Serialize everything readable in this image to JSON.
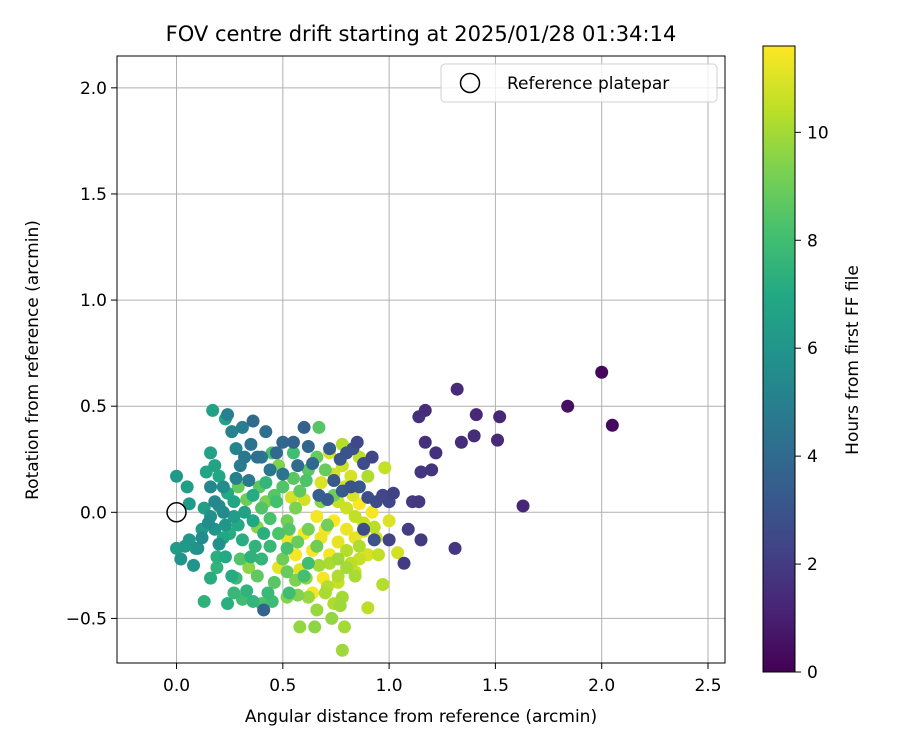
{
  "chart_data": {
    "type": "scatter",
    "title": "FOV centre drift starting at 2025/01/28 01:34:14",
    "xlabel": "Angular distance from reference (arcmin)",
    "ylabel": "Rotation from reference (arcmin)",
    "xlim": [
      -0.28,
      2.58
    ],
    "ylim": [
      -0.71,
      2.15
    ],
    "xticks": [
      0.0,
      0.5,
      1.0,
      1.5,
      2.0,
      2.5
    ],
    "xtick_labels": [
      "0.0",
      "0.5",
      "1.0",
      "1.5",
      "2.0",
      "2.5"
    ],
    "yticks": [
      -0.5,
      0.0,
      0.5,
      1.0,
      1.5,
      2.0
    ],
    "ytick_labels": [
      "−0.5",
      "0.0",
      "0.5",
      "1.0",
      "1.5",
      "2.0"
    ],
    "grid": true,
    "legend": {
      "placement": "top-right",
      "entries": [
        "Reference platepar"
      ]
    },
    "reference_point": {
      "x": 0.0,
      "y": 0.0
    },
    "colorbar": {
      "label": "Hours from first FF file",
      "colormap": "viridis",
      "range": [
        0,
        11.6
      ],
      "ticks": [
        0,
        2,
        4,
        6,
        8,
        10
      ],
      "tick_labels": [
        "0",
        "2",
        "4",
        "6",
        "8",
        "10"
      ]
    },
    "points": [
      {
        "x": 2.0,
        "y": 0.66,
        "h": 0.2
      },
      {
        "x": 2.05,
        "y": 0.41,
        "h": 0.3
      },
      {
        "x": 1.84,
        "y": 0.5,
        "h": 0.5
      },
      {
        "x": 1.63,
        "y": 0.03,
        "h": 1.2
      },
      {
        "x": 1.52,
        "y": 0.45,
        "h": 1.3
      },
      {
        "x": 1.51,
        "y": 0.34,
        "h": 1.4
      },
      {
        "x": 1.41,
        "y": 0.46,
        "h": 1.3
      },
      {
        "x": 1.4,
        "y": 0.36,
        "h": 1.5
      },
      {
        "x": 1.34,
        "y": 0.33,
        "h": 1.5
      },
      {
        "x": 1.32,
        "y": 0.58,
        "h": 1.4
      },
      {
        "x": 1.31,
        "y": -0.17,
        "h": 1.8
      },
      {
        "x": 1.22,
        "y": 0.28,
        "h": 1.6
      },
      {
        "x": 1.2,
        "y": 0.2,
        "h": 1.7
      },
      {
        "x": 1.17,
        "y": 0.48,
        "h": 1.5
      },
      {
        "x": 1.17,
        "y": 0.33,
        "h": 1.6
      },
      {
        "x": 1.14,
        "y": 0.45,
        "h": 1.6
      },
      {
        "x": 1.15,
        "y": 0.19,
        "h": 1.8
      },
      {
        "x": 1.15,
        "y": -0.13,
        "h": 2.0
      },
      {
        "x": 1.14,
        "y": 0.05,
        "h": 1.9
      },
      {
        "x": 1.11,
        "y": 0.05,
        "h": 2.0
      },
      {
        "x": 1.09,
        "y": -0.08,
        "h": 2.1
      },
      {
        "x": 1.07,
        "y": -0.24,
        "h": 2.0
      },
      {
        "x": 1.02,
        "y": 0.09,
        "h": 2.2
      },
      {
        "x": 1.0,
        "y": 0.05,
        "h": 2.4
      },
      {
        "x": 1.0,
        "y": -0.13,
        "h": 2.3
      },
      {
        "x": 0.97,
        "y": 0.08,
        "h": 2.5
      },
      {
        "x": 0.94,
        "y": 0.05,
        "h": 2.6
      },
      {
        "x": 0.92,
        "y": 0.26,
        "h": 2.4
      },
      {
        "x": 0.88,
        "y": 0.23,
        "h": 2.7
      },
      {
        "x": 0.85,
        "y": 0.33,
        "h": 2.5
      },
      {
        "x": 0.83,
        "y": 0.3,
        "h": 2.9
      },
      {
        "x": 0.8,
        "y": 0.28,
        "h": 3.0
      },
      {
        "x": 0.82,
        "y": 0.12,
        "h": 3.0
      },
      {
        "x": 0.77,
        "y": 0.25,
        "h": 3.1
      },
      {
        "x": 0.74,
        "y": 0.15,
        "h": 3.2
      },
      {
        "x": 0.71,
        "y": 0.06,
        "h": 3.4
      },
      {
        "x": 0.67,
        "y": 0.08,
        "h": 3.5
      },
      {
        "x": 0.6,
        "y": 0.4,
        "h": 3.6
      },
      {
        "x": 0.62,
        "y": 0.31,
        "h": 3.8
      },
      {
        "x": 0.5,
        "y": 0.33,
        "h": 3.9
      },
      {
        "x": 0.41,
        "y": -0.46,
        "h": 3.7
      },
      {
        "x": 0.36,
        "y": 0.43,
        "h": 4.0
      },
      {
        "x": 0.42,
        "y": 0.38,
        "h": 4.2
      },
      {
        "x": 0.38,
        "y": 0.26,
        "h": 4.3
      },
      {
        "x": 0.44,
        "y": 0.2,
        "h": 4.5
      },
      {
        "x": 0.32,
        "y": 0.26,
        "h": 4.6
      },
      {
        "x": 0.3,
        "y": 0.22,
        "h": 4.8
      },
      {
        "x": 0.34,
        "y": 0.15,
        "h": 4.7
      },
      {
        "x": 0.24,
        "y": 0.46,
        "h": 5.0
      },
      {
        "x": 0.26,
        "y": 0.38,
        "h": 5.1
      },
      {
        "x": 0.28,
        "y": 0.3,
        "h": 5.2
      },
      {
        "x": 0.16,
        "y": 0.12,
        "h": 5.3
      },
      {
        "x": 0.18,
        "y": 0.05,
        "h": 5.4
      },
      {
        "x": 0.22,
        "y": 0.0,
        "h": 5.5
      },
      {
        "x": 0.15,
        "y": -0.05,
        "h": 5.6
      },
      {
        "x": 0.12,
        "y": -0.12,
        "h": 5.5
      },
      {
        "x": 0.2,
        "y": -0.15,
        "h": 5.8
      },
      {
        "x": 0.1,
        "y": -0.17,
        "h": 5.9
      },
      {
        "x": 0.08,
        "y": -0.25,
        "h": 6.0
      },
      {
        "x": 0.06,
        "y": -0.13,
        "h": 6.1
      },
      {
        "x": 0.04,
        "y": -0.16,
        "h": 6.2
      },
      {
        "x": 0.02,
        "y": -0.22,
        "h": 6.0
      },
      {
        "x": 0.0,
        "y": -0.17,
        "h": 6.3
      },
      {
        "x": 0.0,
        "y": 0.17,
        "h": 6.2
      },
      {
        "x": 0.05,
        "y": 0.12,
        "h": 6.4
      },
      {
        "x": 0.06,
        "y": 0.04,
        "h": 6.3
      },
      {
        "x": 0.13,
        "y": 0.02,
        "h": 6.5
      },
      {
        "x": 0.17,
        "y": 0.48,
        "h": 6.6
      },
      {
        "x": 0.23,
        "y": 0.44,
        "h": 6.7
      },
      {
        "x": 0.16,
        "y": 0.28,
        "h": 6.6
      },
      {
        "x": 0.14,
        "y": 0.19,
        "h": 6.8
      },
      {
        "x": 0.18,
        "y": 0.22,
        "h": 6.7
      },
      {
        "x": 0.2,
        "y": 0.17,
        "h": 6.9
      },
      {
        "x": 0.24,
        "y": 0.09,
        "h": 7.0
      },
      {
        "x": 0.27,
        "y": 0.05,
        "h": 6.8
      },
      {
        "x": 0.29,
        "y": -0.06,
        "h": 7.0
      },
      {
        "x": 0.25,
        "y": -0.1,
        "h": 7.1
      },
      {
        "x": 0.31,
        "y": -0.13,
        "h": 7.2
      },
      {
        "x": 0.23,
        "y": -0.21,
        "h": 7.0
      },
      {
        "x": 0.26,
        "y": -0.3,
        "h": 7.1
      },
      {
        "x": 0.24,
        "y": -0.43,
        "h": 7.3
      },
      {
        "x": 0.13,
        "y": -0.42,
        "h": 7.4
      },
      {
        "x": 0.16,
        "y": -0.31,
        "h": 7.2
      },
      {
        "x": 0.19,
        "y": -0.21,
        "h": 7.3
      },
      {
        "x": 0.35,
        "y": -0.21,
        "h": 7.4
      },
      {
        "x": 0.37,
        "y": -0.16,
        "h": 7.5
      },
      {
        "x": 0.4,
        "y": -0.22,
        "h": 7.6
      },
      {
        "x": 0.33,
        "y": -0.37,
        "h": 7.5
      },
      {
        "x": 0.36,
        "y": -0.42,
        "h": 7.6
      },
      {
        "x": 0.27,
        "y": -0.38,
        "h": 7.7
      },
      {
        "x": 0.43,
        "y": -0.38,
        "h": 7.8
      },
      {
        "x": 0.45,
        "y": -0.42,
        "h": 7.9
      },
      {
        "x": 0.53,
        "y": -0.38,
        "h": 8.0
      },
      {
        "x": 0.6,
        "y": -0.3,
        "h": 8.1
      },
      {
        "x": 0.62,
        "y": -0.24,
        "h": 8.0
      },
      {
        "x": 0.52,
        "y": -0.17,
        "h": 8.2
      },
      {
        "x": 0.48,
        "y": -0.1,
        "h": 8.3
      },
      {
        "x": 0.44,
        "y": -0.03,
        "h": 8.2
      },
      {
        "x": 0.4,
        "y": 0.02,
        "h": 8.4
      },
      {
        "x": 0.46,
        "y": 0.08,
        "h": 8.5
      },
      {
        "x": 0.5,
        "y": 0.12,
        "h": 8.4
      },
      {
        "x": 0.55,
        "y": 0.16,
        "h": 8.6
      },
      {
        "x": 0.58,
        "y": 0.1,
        "h": 8.7
      },
      {
        "x": 0.62,
        "y": 0.2,
        "h": 8.6
      },
      {
        "x": 0.66,
        "y": 0.26,
        "h": 8.8
      },
      {
        "x": 0.67,
        "y": 0.4,
        "h": 8.5
      },
      {
        "x": 0.7,
        "y": 0.2,
        "h": 8.9
      },
      {
        "x": 0.74,
        "y": 0.08,
        "h": 9.0
      },
      {
        "x": 0.71,
        "y": -0.06,
        "h": 9.1
      },
      {
        "x": 0.66,
        "y": -0.16,
        "h": 9.0
      },
      {
        "x": 0.62,
        "y": -0.08,
        "h": 9.2
      },
      {
        "x": 0.56,
        "y": 0.02,
        "h": 9.3
      },
      {
        "x": 0.52,
        "y": -0.04,
        "h": 9.1
      },
      {
        "x": 0.48,
        "y": 0.22,
        "h": 9.4
      },
      {
        "x": 0.42,
        "y": 0.05,
        "h": 9.3
      },
      {
        "x": 0.38,
        "y": -0.07,
        "h": 9.5
      },
      {
        "x": 0.34,
        "y": -0.26,
        "h": 9.6
      },
      {
        "x": 0.52,
        "y": -0.4,
        "h": 9.4
      },
      {
        "x": 0.58,
        "y": -0.54,
        "h": 9.7
      },
      {
        "x": 0.65,
        "y": -0.54,
        "h": 9.6
      },
      {
        "x": 0.66,
        "y": -0.46,
        "h": 9.8
      },
      {
        "x": 0.73,
        "y": -0.5,
        "h": 9.7
      },
      {
        "x": 0.77,
        "y": -0.44,
        "h": 9.9
      },
      {
        "x": 0.79,
        "y": -0.54,
        "h": 10.0
      },
      {
        "x": 0.78,
        "y": -0.65,
        "h": 9.9
      },
      {
        "x": 0.84,
        "y": -0.3,
        "h": 10.1
      },
      {
        "x": 0.8,
        "y": -0.26,
        "h": 10.0
      },
      {
        "x": 0.76,
        "y": -0.3,
        "h": 10.2
      },
      {
        "x": 0.72,
        "y": -0.24,
        "h": 10.1
      },
      {
        "x": 0.8,
        "y": -0.18,
        "h": 10.3
      },
      {
        "x": 0.86,
        "y": -0.16,
        "h": 10.2
      },
      {
        "x": 0.9,
        "y": -0.45,
        "h": 10.4
      },
      {
        "x": 0.97,
        "y": -0.34,
        "h": 10.3
      },
      {
        "x": 0.95,
        "y": -0.2,
        "h": 10.5
      },
      {
        "x": 0.93,
        "y": -0.07,
        "h": 10.4
      },
      {
        "x": 0.88,
        "y": -0.05,
        "h": 10.6
      },
      {
        "x": 0.84,
        "y": -0.02,
        "h": 10.5
      },
      {
        "x": 0.8,
        "y": 0.02,
        "h": 10.7
      },
      {
        "x": 0.76,
        "y": 0.05,
        "h": 10.6
      },
      {
        "x": 0.74,
        "y": 0.18,
        "h": 10.8
      },
      {
        "x": 0.78,
        "y": 0.22,
        "h": 10.7
      },
      {
        "x": 0.82,
        "y": 0.17,
        "h": 10.9
      },
      {
        "x": 0.78,
        "y": 0.32,
        "h": 10.3
      },
      {
        "x": 0.9,
        "y": 0.17,
        "h": 10.2
      },
      {
        "x": 0.98,
        "y": 0.21,
        "h": 10.6
      },
      {
        "x": 1.0,
        "y": -0.04,
        "h": 11.0
      },
      {
        "x": 1.04,
        "y": -0.19,
        "h": 10.8
      },
      {
        "x": 0.88,
        "y": -0.09,
        "h": 11.1
      },
      {
        "x": 0.84,
        "y": -0.12,
        "h": 11.2
      },
      {
        "x": 0.8,
        "y": -0.08,
        "h": 11.3
      },
      {
        "x": 0.76,
        "y": -0.14,
        "h": 11.2
      },
      {
        "x": 0.72,
        "y": -0.2,
        "h": 11.4
      },
      {
        "x": 0.68,
        "y": -0.12,
        "h": 11.3
      },
      {
        "x": 0.64,
        "y": -0.18,
        "h": 11.5
      },
      {
        "x": 0.6,
        "y": -0.1,
        "h": 11.4
      },
      {
        "x": 0.56,
        "y": -0.2,
        "h": 11.5
      },
      {
        "x": 0.52,
        "y": -0.12,
        "h": 11.3
      },
      {
        "x": 0.48,
        "y": -0.26,
        "h": 11.2
      },
      {
        "x": 0.64,
        "y": -0.38,
        "h": 11.4
      },
      {
        "x": 0.69,
        "y": -0.31,
        "h": 11.5
      },
      {
        "x": 0.74,
        "y": -0.04,
        "h": 11.6
      },
      {
        "x": 0.7,
        "y": -0.08,
        "h": 11.5
      },
      {
        "x": 0.66,
        "y": -0.02,
        "h": 11.4
      },
      {
        "x": 0.86,
        "y": 0.04,
        "h": 11.6
      },
      {
        "x": 0.92,
        "y": 0.0,
        "h": 11.5
      },
      {
        "x": 0.58,
        "y": -0.27,
        "h": 11.1
      },
      {
        "x": 0.54,
        "y": 0.07,
        "h": 10.9
      },
      {
        "x": 0.6,
        "y": 0.06,
        "h": 10.8
      },
      {
        "x": 0.68,
        "y": 0.14,
        "h": 11.0
      },
      {
        "x": 0.72,
        "y": 0.28,
        "h": 10.9
      },
      {
        "x": 0.86,
        "y": 0.26,
        "h": 10.4
      },
      {
        "x": 0.33,
        "y": 0.06,
        "h": 9.0
      },
      {
        "x": 0.29,
        "y": 0.12,
        "h": 8.8
      },
      {
        "x": 0.39,
        "y": 0.12,
        "h": 8.6
      },
      {
        "x": 0.45,
        "y": 0.28,
        "h": 8.2
      },
      {
        "x": 0.55,
        "y": 0.28,
        "h": 8.0
      },
      {
        "x": 0.3,
        "y": -0.22,
        "h": 8.4
      },
      {
        "x": 0.38,
        "y": -0.3,
        "h": 8.7
      },
      {
        "x": 0.5,
        "y": -0.22,
        "h": 9.0
      },
      {
        "x": 0.56,
        "y": -0.32,
        "h": 9.3
      },
      {
        "x": 0.62,
        "y": -0.4,
        "h": 9.8
      },
      {
        "x": 0.7,
        "y": -0.38,
        "h": 10.1
      },
      {
        "x": 0.86,
        "y": -0.22,
        "h": 10.6
      },
      {
        "x": 0.94,
        "y": -0.12,
        "h": 10.9
      },
      {
        "x": 0.97,
        "y": 0.08,
        "h": 2.4
      },
      {
        "x": 0.9,
        "y": 0.07,
        "h": 2.8
      },
      {
        "x": 0.86,
        "y": 0.12,
        "h": 3.2
      },
      {
        "x": 0.78,
        "y": 0.1,
        "h": 3.3
      },
      {
        "x": 0.64,
        "y": 0.23,
        "h": 3.9
      },
      {
        "x": 0.57,
        "y": 0.22,
        "h": 4.1
      },
      {
        "x": 0.5,
        "y": 0.18,
        "h": 4.4
      },
      {
        "x": 0.47,
        "y": 0.28,
        "h": 4.0
      },
      {
        "x": 0.4,
        "y": 0.26,
        "h": 4.6
      },
      {
        "x": 0.35,
        "y": 0.32,
        "h": 4.4
      },
      {
        "x": 0.31,
        "y": 0.4,
        "h": 4.9
      },
      {
        "x": 0.28,
        "y": 0.16,
        "h": 5.0
      },
      {
        "x": 0.22,
        "y": 0.12,
        "h": 5.6
      },
      {
        "x": 0.2,
        "y": 0.03,
        "h": 5.7
      },
      {
        "x": 0.18,
        "y": -0.08,
        "h": 6.0
      },
      {
        "x": 0.23,
        "y": -0.06,
        "h": 6.1
      },
      {
        "x": 0.27,
        "y": -0.02,
        "h": 6.4
      },
      {
        "x": 0.32,
        "y": 0.0,
        "h": 6.6
      },
      {
        "x": 0.36,
        "y": -0.04,
        "h": 6.9
      },
      {
        "x": 0.41,
        "y": -0.1,
        "h": 7.3
      },
      {
        "x": 0.44,
        "y": -0.16,
        "h": 7.7
      },
      {
        "x": 0.36,
        "y": 0.08,
        "h": 7.1
      },
      {
        "x": 0.42,
        "y": 0.14,
        "h": 7.6
      },
      {
        "x": 0.47,
        "y": 0.05,
        "h": 8.1
      },
      {
        "x": 0.53,
        "y": -0.08,
        "h": 8.5
      },
      {
        "x": 0.57,
        "y": -0.14,
        "h": 8.9
      },
      {
        "x": 0.61,
        "y": 0.15,
        "h": 8.3
      },
      {
        "x": 0.68,
        "y": 0.05,
        "h": 9.5
      },
      {
        "x": 0.76,
        "y": -0.22,
        "h": 9.9
      },
      {
        "x": 0.82,
        "y": -0.24,
        "h": 10.4
      },
      {
        "x": 0.78,
        "y": -0.4,
        "h": 10.0
      },
      {
        "x": 0.74,
        "y": -0.43,
        "h": 10.2
      },
      {
        "x": 0.84,
        "y": -0.28,
        "h": 10.7
      },
      {
        "x": 0.9,
        "y": -0.2,
        "h": 10.9
      },
      {
        "x": 0.83,
        "y": 0.08,
        "h": 11.0
      },
      {
        "x": 0.79,
        "y": 0.12,
        "h": 10.8
      },
      {
        "x": 0.88,
        "y": -0.08,
        "h": 2.7
      },
      {
        "x": 0.93,
        "y": -0.13,
        "h": 2.9
      },
      {
        "x": 0.72,
        "y": 0.3,
        "h": 3.4
      },
      {
        "x": 0.55,
        "y": 0.33,
        "h": 3.7
      },
      {
        "x": 0.16,
        "y": -0.02,
        "h": 5.9
      },
      {
        "x": 0.12,
        "y": -0.08,
        "h": 6.3
      },
      {
        "x": 0.09,
        "y": -0.17,
        "h": 6.5
      },
      {
        "x": 0.22,
        "y": -0.12,
        "h": 6.9
      },
      {
        "x": 0.19,
        "y": -0.26,
        "h": 7.5
      },
      {
        "x": 0.28,
        "y": -0.31,
        "h": 7.8
      },
      {
        "x": 0.31,
        "y": -0.41,
        "h": 8.0
      },
      {
        "x": 0.4,
        "y": -0.43,
        "h": 8.3
      },
      {
        "x": 0.46,
        "y": -0.33,
        "h": 8.6
      },
      {
        "x": 0.52,
        "y": -0.28,
        "h": 8.9
      },
      {
        "x": 0.57,
        "y": -0.39,
        "h": 9.4
      },
      {
        "x": 0.61,
        "y": -0.31,
        "h": 9.7
      },
      {
        "x": 0.67,
        "y": -0.25,
        "h": 10.0
      },
      {
        "x": 0.71,
        "y": -0.35,
        "h": 10.3
      },
      {
        "x": 0.76,
        "y": -0.33,
        "h": 10.6
      }
    ]
  }
}
